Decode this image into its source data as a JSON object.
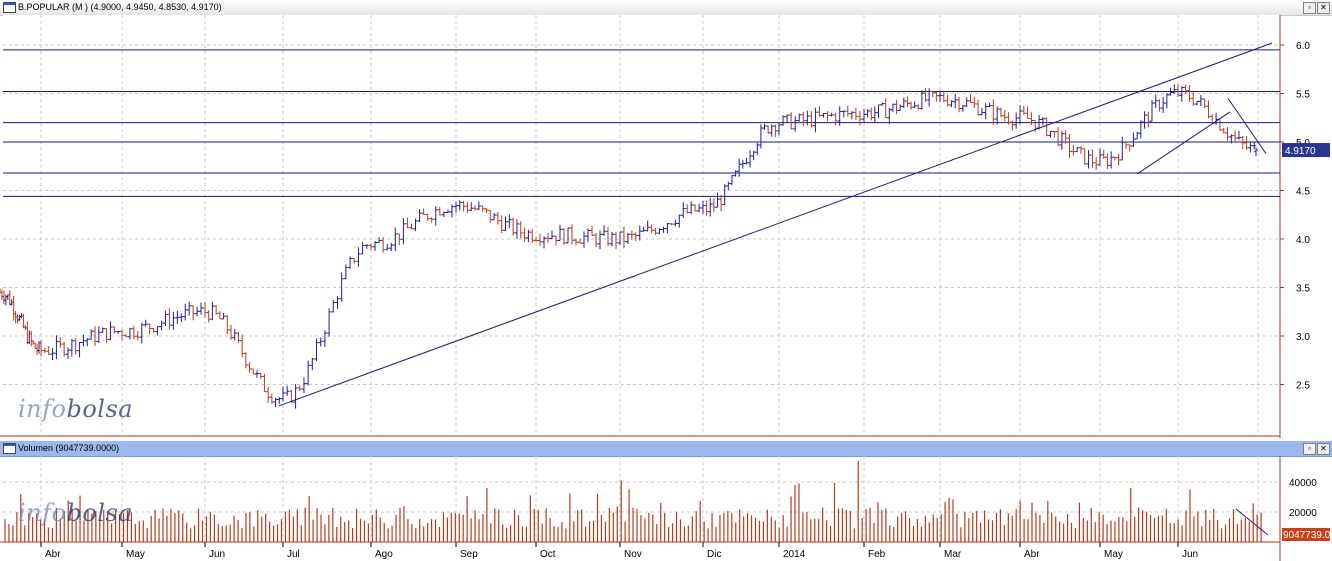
{
  "price_panel": {
    "title": "B.POPULAR (M ) (4.9000, 4.9450, 4.8530, 4.9170)",
    "last_label": "4.9170",
    "watermark": {
      "part1": "info",
      "part2": "bolsa"
    },
    "buttons": {
      "minimize": "▫",
      "close": "✕"
    }
  },
  "volume_panel": {
    "title": "Volumen (9047739.0000)",
    "last_label": "9047739.0",
    "watermark": {
      "part1": "info",
      "part2": "bolsa"
    },
    "buttons": {
      "minimize": "▫",
      "close": "✕"
    }
  },
  "colors": {
    "up": "#1e1e9c",
    "down": "#b83a1a",
    "line": "#1a1a7a",
    "grid": "#c8c8c8",
    "label_bg": "#2a3590",
    "volume_label_bg": "#c8401c"
  },
  "chart_data": [
    {
      "type": "ohlc",
      "series_name": "B.POPULAR",
      "y_axis_ticks": [
        2.5,
        3.0,
        3.5,
        4.0,
        4.5,
        5.0,
        5.5,
        6.0
      ],
      "ylim": [
        2.0,
        6.25
      ],
      "x_axis_labels": [
        "Abr",
        "May",
        "Jun",
        "Jul",
        "Ago",
        "Sep",
        "Oct",
        "Nov",
        "Dic",
        "2014",
        "Feb",
        "Mar",
        "Abr",
        "May",
        "Jun"
      ],
      "last": {
        "open": 4.9,
        "high": 4.945,
        "low": 4.853,
        "close": 4.917
      },
      "monthly_closes": [
        3.45,
        2.85,
        3.05,
        3.25,
        2.35,
        3.95,
        4.35,
        4.05,
        4.0,
        4.3,
        5.2,
        5.3,
        5.45,
        5.25,
        4.8,
        5.5,
        4.917
      ],
      "horizontal_levels": [
        5.95,
        5.52,
        5.2,
        5.0,
        4.68,
        4.44
      ],
      "trendlines": [
        {
          "from": [
            "2013-07",
            2.28
          ],
          "to": [
            "2014-06",
            6.02
          ]
        },
        {
          "from": [
            "2014-05",
            4.67
          ],
          "to": [
            "2014-06",
            5.31
          ]
        },
        {
          "from": [
            "2014-06",
            5.45
          ],
          "to": [
            "2014-06",
            4.88
          ]
        }
      ]
    },
    {
      "type": "bar",
      "series_name": "Volumen",
      "y_axis_ticks": [
        20000,
        40000
      ],
      "ylim": [
        0,
        60000
      ],
      "x_axis_labels": [
        "Abr",
        "May",
        "Jun",
        "Jul",
        "Ago",
        "Sep",
        "Oct",
        "Nov",
        "Dic",
        "2014",
        "Feb",
        "Mar",
        "Abr",
        "May",
        "Jun"
      ],
      "last_value": 9047739.0,
      "peak_values": [
        36000,
        41000,
        38000,
        54000,
        36000,
        35000
      ]
    }
  ]
}
